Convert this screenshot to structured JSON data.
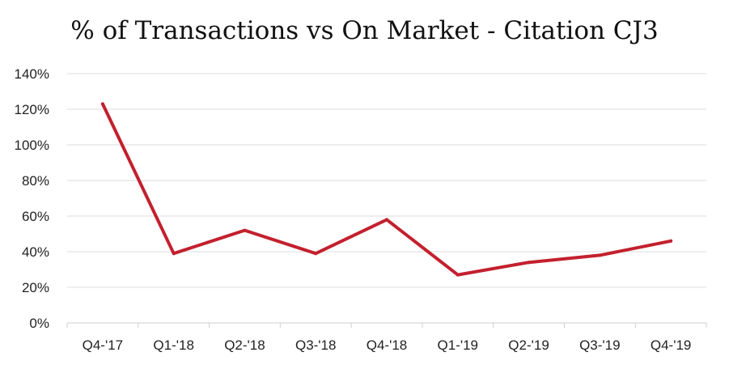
{
  "chart_data": {
    "type": "line",
    "title": "% of Transactions vs On Market - Citation CJ3",
    "xlabel": "",
    "ylabel": "",
    "categories": [
      "Q4-'17",
      "Q1-'18",
      "Q2-'18",
      "Q3-'18",
      "Q4-'18",
      "Q1-'19",
      "Q2-'19",
      "Q3-'19",
      "Q4-'19"
    ],
    "series": [
      {
        "values": [
          123,
          39,
          52,
          39,
          58,
          27,
          34,
          38,
          46
        ]
      }
    ],
    "ylim": [
      0,
      140
    ],
    "yticks": [
      0,
      20,
      40,
      60,
      80,
      100,
      120,
      140
    ],
    "ytick_labels": [
      "0%",
      "20%",
      "40%",
      "60%",
      "80%",
      "100%",
      "120%",
      "140%"
    ],
    "grid": true,
    "legend": "none",
    "line_color": "#c3202e"
  }
}
